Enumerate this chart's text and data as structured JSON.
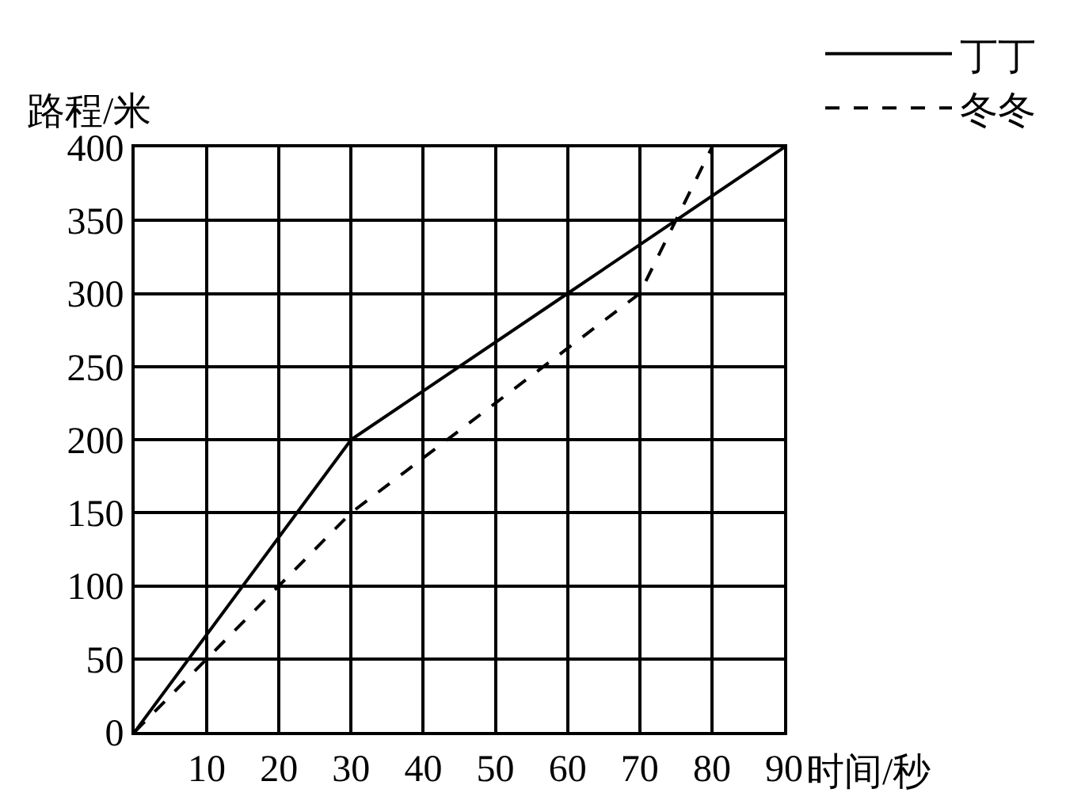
{
  "chart_data": {
    "type": "line",
    "xlabel": "时间/秒",
    "ylabel": "路程/米",
    "xlim": [
      0,
      90
    ],
    "xticks": [
      10,
      20,
      30,
      40,
      50,
      60,
      70,
      80,
      90
    ],
    "ylim": [
      0,
      400
    ],
    "yticks": [
      0,
      50,
      100,
      150,
      200,
      250,
      300,
      350,
      400
    ],
    "grid": true,
    "legend": "top right",
    "series": [
      {
        "name": "丁丁",
        "color": "#000000",
        "line_style": "solid",
        "x": [
          0,
          30,
          60,
          90
        ],
        "values": [
          0,
          200,
          300,
          400
        ]
      },
      {
        "name": "冬冬",
        "color": "#000000",
        "line_style": "dashed",
        "x": [
          0,
          30,
          70,
          80
        ],
        "values": [
          0,
          150,
          300,
          400
        ]
      }
    ]
  }
}
